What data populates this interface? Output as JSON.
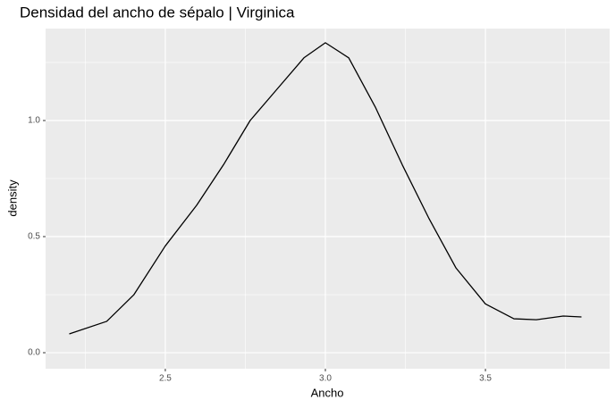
{
  "chart_data": {
    "type": "line",
    "title": "Densidad del ancho de sépalo | Virginica",
    "x_label": "Ancho",
    "y_label": "density",
    "x": [
      2.2,
      2.317,
      2.402,
      2.5,
      2.598,
      2.682,
      2.765,
      2.849,
      2.933,
      3.0,
      3.073,
      3.156,
      3.24,
      3.324,
      3.408,
      3.5,
      3.589,
      3.659,
      3.743,
      3.8
    ],
    "series": [
      {
        "name": "density",
        "color": "#000000",
        "values": [
          0.081,
          0.135,
          0.25,
          0.46,
          0.635,
          0.81,
          1.0,
          1.135,
          1.27,
          1.335,
          1.27,
          1.058,
          0.81,
          0.577,
          0.365,
          0.21,
          0.146,
          0.142,
          0.158,
          0.154
        ]
      }
    ],
    "xlim": [
      2.126,
      3.888
    ],
    "ylim": [
      -0.069,
      1.396
    ],
    "xticks": [
      2.5,
      {
        "value": 3,
        "label": "3.0"
      },
      3.5
    ],
    "yticks": [
      {
        "value": 0,
        "label": "0.0"
      },
      0.5,
      {
        "value": 1,
        "label": "1.0"
      }
    ],
    "x_minor_grid": [
      2.25,
      2.75,
      3.25,
      3.75
    ],
    "y_minor_grid": [
      0.25,
      0.75,
      1.25
    ],
    "grid": true
  }
}
